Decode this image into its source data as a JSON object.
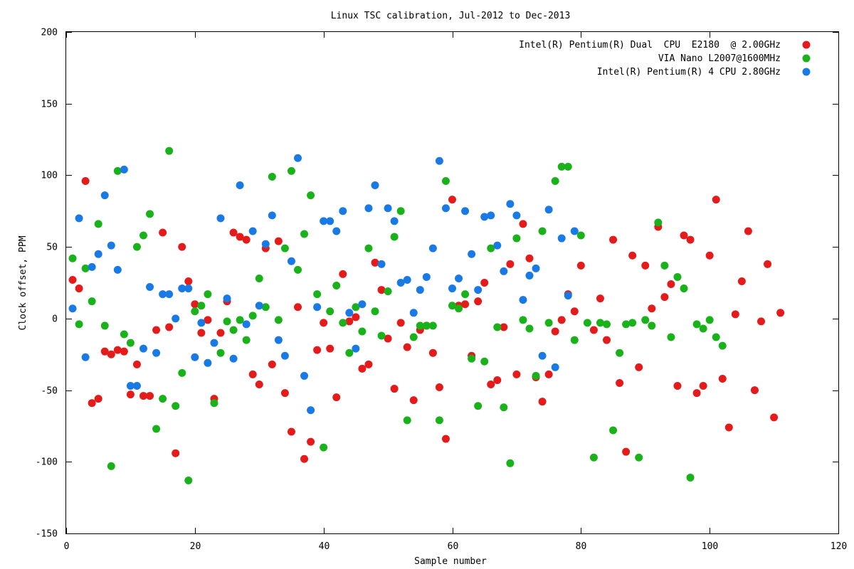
{
  "chart_data": {
    "type": "scatter",
    "title": "Linux TSC calibration, Jul-2012 to Dec-2013",
    "xlabel": "Sample number",
    "ylabel": "Clock offset, PPM",
    "xlim": [
      0,
      120
    ],
    "ylim": [
      -150,
      200
    ],
    "x_ticks": [
      0,
      20,
      40,
      60,
      80,
      100,
      120
    ],
    "y_ticks": [
      -150,
      -100,
      -50,
      0,
      50,
      100,
      150,
      200
    ],
    "grid": false,
    "legend_position": "top-right",
    "series": [
      {
        "name": "Intel(R) Pentium(R) Dual  CPU  E2180  @ 2.00GHz",
        "color": "#e51a1a",
        "values": [
          27,
          21,
          96,
          -59,
          -56,
          -23,
          -25,
          -22,
          -23,
          -53,
          -32,
          -54,
          -54,
          -8,
          60,
          -6,
          -94,
          50,
          26,
          10,
          -10,
          -1,
          -56,
          -10,
          12,
          60,
          57,
          55,
          -39,
          -46,
          49,
          -32,
          54,
          -52,
          -79,
          8,
          -98,
          -86,
          -22,
          -3,
          -21,
          -55,
          31,
          -2,
          1,
          -35,
          -32,
          39,
          20,
          -14,
          -49,
          -3,
          -20,
          -57,
          -8,
          -5,
          -24,
          -48,
          -84,
          83,
          9,
          10,
          -26,
          12,
          25,
          -46,
          -43,
          -6,
          38,
          -39,
          66,
          42,
          -41,
          -58,
          -39,
          -9,
          -1,
          17,
          5,
          37,
          null,
          -8,
          14,
          -15,
          55,
          -45,
          -93,
          44,
          -34,
          37,
          7,
          64,
          15,
          24,
          -47,
          58,
          55,
          -52,
          -47,
          44,
          83,
          -42,
          -76,
          3,
          26,
          61,
          -50,
          -2,
          38,
          -69,
          4
        ]
      },
      {
        "name": "VIA Nano L2007@1600MHz",
        "color": "#1ab21a",
        "values": [
          42,
          -4,
          35,
          12,
          66,
          -5,
          -103,
          103,
          -11,
          -17,
          50,
          58,
          73,
          -77,
          -56,
          117,
          -61,
          -38,
          -113,
          5,
          9,
          17,
          -59,
          -24,
          -2,
          -8,
          -1,
          -15,
          2,
          28,
          8,
          99,
          -1,
          49,
          103,
          34,
          59,
          86,
          17,
          -90,
          5,
          23,
          -3,
          -24,
          8,
          -9,
          49,
          5,
          -12,
          19,
          57,
          75,
          -71,
          -13,
          -5,
          -5,
          -5,
          -71,
          96,
          9,
          7,
          17,
          -28,
          -61,
          -30,
          49,
          -6,
          -62,
          -101,
          56,
          -1,
          -7,
          -40,
          61,
          -3,
          96,
          106,
          106,
          -15,
          58,
          -3,
          -97,
          -3,
          -4,
          -78,
          -24,
          -4,
          -3,
          -97,
          -1,
          -5,
          67,
          37,
          -13,
          29,
          21,
          -111,
          -4,
          -7,
          -1,
          -13,
          -19
        ]
      },
      {
        "name": "Intel(R) Pentium(R) 4 CPU 2.80GHz",
        "color": "#1a7ae5",
        "values": [
          7,
          70,
          -27,
          36,
          45,
          86,
          51,
          34,
          104,
          -47,
          -47,
          -21,
          22,
          -24,
          17,
          17,
          0,
          21,
          21,
          -27,
          -3,
          -31,
          -17,
          70,
          14,
          -28,
          93,
          -4,
          61,
          9,
          52,
          72,
          -15,
          -26,
          40,
          112,
          -40,
          -64,
          8,
          68,
          68,
          61,
          75,
          4,
          -21,
          10,
          77,
          93,
          38,
          77,
          68,
          25,
          27,
          4,
          20,
          29,
          49,
          110,
          77,
          21,
          28,
          75,
          45,
          20,
          71,
          72,
          51,
          33,
          80,
          72,
          13,
          30,
          35,
          -26,
          76,
          -34,
          56,
          16,
          61
        ]
      }
    ]
  }
}
